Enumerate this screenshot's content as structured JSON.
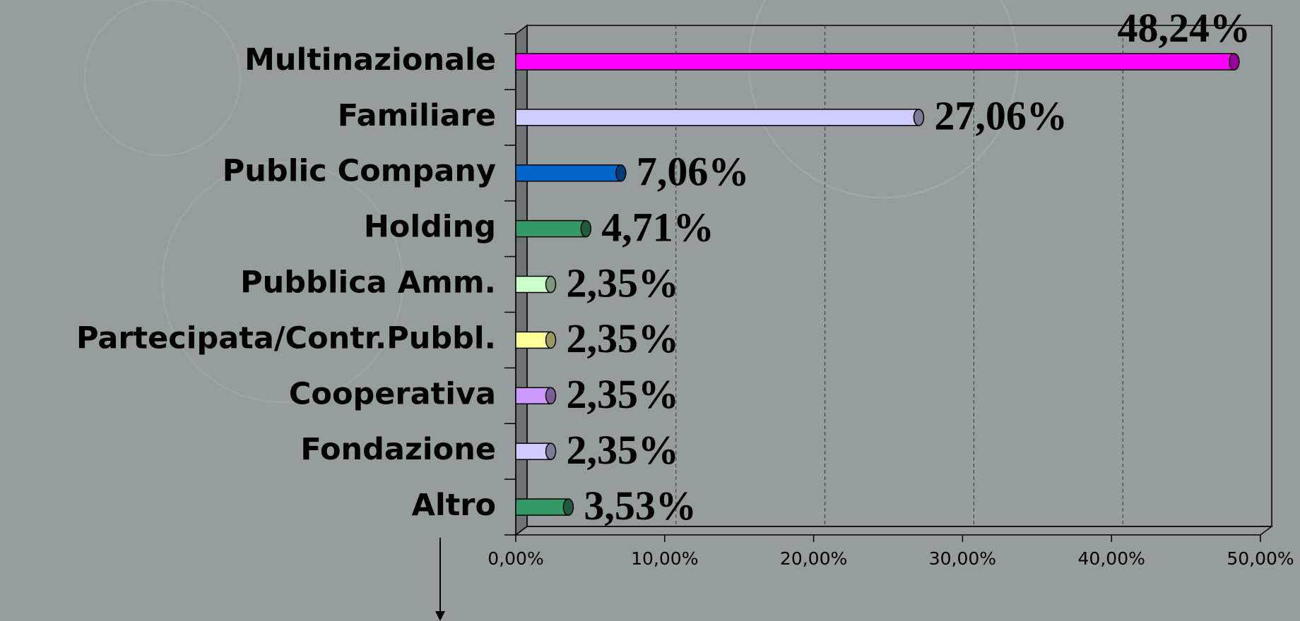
{
  "chart_data": {
    "type": "bar",
    "horizontal": true,
    "categories": [
      "Multinazionale",
      "Familiare",
      "Public Company",
      "Holding",
      "Pubblica Amm.",
      "Partecipata/Contr.Pubbl.",
      "Cooperativa",
      "Fondazione",
      "Altro"
    ],
    "values": [
      48.24,
      27.06,
      7.06,
      4.71,
      2.35,
      2.35,
      2.35,
      2.35,
      3.53
    ],
    "value_labels": [
      "48,24%",
      "27,06%",
      "7,06%",
      "4,71%",
      "2,35%",
      "2,35%",
      "2,35%",
      "2,35%",
      "3,53%"
    ],
    "colors": [
      "#ff00ff",
      "#ccccff",
      "#0066cc",
      "#339966",
      "#ccffcc",
      "#ffff99",
      "#cc99ff",
      "#ccccff",
      "#339966"
    ],
    "xlim": [
      0,
      50
    ],
    "xticks": [
      {
        "value": 0,
        "label": "0,00%"
      },
      {
        "value": 10,
        "label": "10,00%"
      },
      {
        "value": 20,
        "label": "20,00%"
      },
      {
        "value": 30,
        "label": "30,00%"
      },
      {
        "value": 40,
        "label": "40,00%"
      },
      {
        "value": 50,
        "label": "50,00%"
      }
    ],
    "grid": true
  }
}
